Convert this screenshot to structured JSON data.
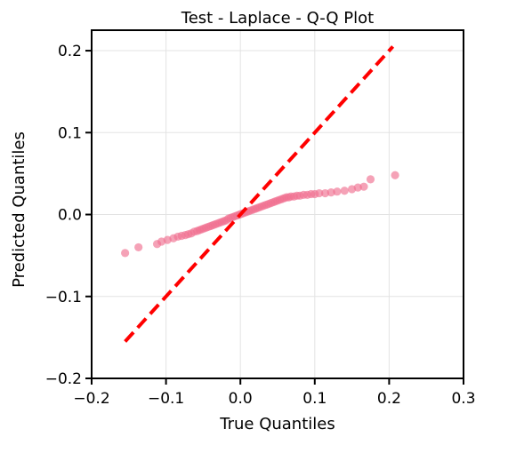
{
  "chart_data": {
    "type": "scatter",
    "title": "Test - Laplace - Q-Q Plot",
    "xlabel": "True Quantiles",
    "ylabel": "Predicted Quantiles",
    "xlim": [
      -0.2,
      0.3
    ],
    "ylim": [
      -0.2,
      0.225
    ],
    "xticks": [
      -0.2,
      -0.1,
      0.0,
      0.1,
      0.2,
      0.3
    ],
    "xtick_labels": [
      "−0.2",
      "−0.1",
      "0.0",
      "0.1",
      "0.2",
      "0.3"
    ],
    "yticks": [
      -0.2,
      -0.1,
      0.0,
      0.1,
      0.2
    ],
    "ytick_labels": [
      "−0.2",
      "−0.1",
      "0.0",
      "0.1",
      "0.2"
    ],
    "grid": true,
    "point_color": "#f07090",
    "reference_line": {
      "style": "dashed",
      "color": "#ff0000",
      "points": [
        [
          -0.155,
          -0.155
        ],
        [
          0.205,
          0.205
        ]
      ]
    },
    "points": [
      [
        -0.155,
        -0.047
      ],
      [
        -0.137,
        -0.04
      ],
      [
        -0.112,
        -0.036
      ],
      [
        -0.106,
        -0.033
      ],
      [
        -0.098,
        -0.031
      ],
      [
        -0.09,
        -0.029
      ],
      [
        -0.084,
        -0.027
      ],
      [
        -0.079,
        -0.026
      ],
      [
        -0.074,
        -0.025
      ],
      [
        -0.07,
        -0.024
      ],
      [
        -0.066,
        -0.023
      ],
      [
        -0.062,
        -0.021
      ],
      [
        -0.058,
        -0.02
      ],
      [
        -0.055,
        -0.019
      ],
      [
        -0.052,
        -0.018
      ],
      [
        -0.049,
        -0.017
      ],
      [
        -0.046,
        -0.016
      ],
      [
        -0.043,
        -0.015
      ],
      [
        -0.04,
        -0.014
      ],
      [
        -0.037,
        -0.013
      ],
      [
        -0.034,
        -0.012
      ],
      [
        -0.031,
        -0.011
      ],
      [
        -0.028,
        -0.01
      ],
      [
        -0.025,
        -0.009
      ],
      [
        -0.022,
        -0.008
      ],
      [
        -0.019,
        -0.007
      ],
      [
        -0.016,
        -0.005
      ],
      [
        -0.013,
        -0.004
      ],
      [
        -0.01,
        -0.003
      ],
      [
        -0.007,
        -0.002
      ],
      [
        -0.004,
        -0.001
      ],
      [
        -0.001,
        0.0
      ],
      [
        0.002,
        0.001
      ],
      [
        0.005,
        0.002
      ],
      [
        0.008,
        0.003
      ],
      [
        0.011,
        0.004
      ],
      [
        0.014,
        0.005
      ],
      [
        0.017,
        0.006
      ],
      [
        0.02,
        0.007
      ],
      [
        0.023,
        0.008
      ],
      [
        0.026,
        0.009
      ],
      [
        0.029,
        0.01
      ],
      [
        0.032,
        0.011
      ],
      [
        0.035,
        0.012
      ],
      [
        0.038,
        0.013
      ],
      [
        0.041,
        0.014
      ],
      [
        0.044,
        0.015
      ],
      [
        0.047,
        0.016
      ],
      [
        0.05,
        0.017
      ],
      [
        0.053,
        0.018
      ],
      [
        0.056,
        0.019
      ],
      [
        0.059,
        0.02
      ],
      [
        0.062,
        0.021
      ],
      [
        0.065,
        0.021
      ],
      [
        0.068,
        0.022
      ],
      [
        0.072,
        0.022
      ],
      [
        0.076,
        0.023
      ],
      [
        0.08,
        0.023
      ],
      [
        0.085,
        0.024
      ],
      [
        0.09,
        0.024
      ],
      [
        0.095,
        0.025
      ],
      [
        0.1,
        0.025
      ],
      [
        0.106,
        0.026
      ],
      [
        0.114,
        0.026
      ],
      [
        0.122,
        0.027
      ],
      [
        0.13,
        0.028
      ],
      [
        0.14,
        0.029
      ],
      [
        0.15,
        0.031
      ],
      [
        0.158,
        0.033
      ],
      [
        0.166,
        0.034
      ],
      [
        0.175,
        0.043
      ],
      [
        0.208,
        0.048
      ]
    ]
  }
}
